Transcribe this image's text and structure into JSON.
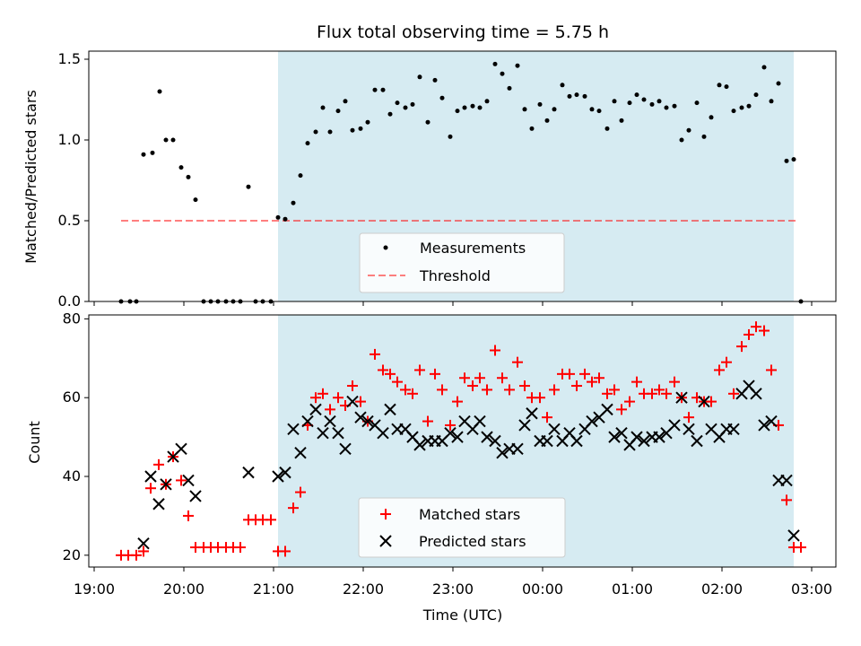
{
  "chart_data": {
    "type": "scatter",
    "title": "Flux total observing time = 5.75 h",
    "xlabel": "Time (UTC)",
    "x_ticks": [
      "19:00",
      "20:00",
      "21:00",
      "22:00",
      "23:00",
      "00:00",
      "01:00",
      "02:00",
      "03:00"
    ],
    "observing_window_hours": [
      21.05,
      26.8
    ],
    "top_panel": {
      "ylabel": "Matched/Predicted stars",
      "ylim": [
        0,
        1.55
      ],
      "y_ticks": [
        "0.0",
        "0.5",
        "1.0",
        "1.5"
      ],
      "legend": [
        "Measurements",
        "Threshold"
      ],
      "threshold": {
        "value": 0.5,
        "x_range": [
          19.3,
          26.85
        ]
      },
      "measurements": [
        [
          19.3,
          0
        ],
        [
          19.4,
          0
        ],
        [
          19.47,
          0
        ],
        [
          19.55,
          0.91
        ],
        [
          19.65,
          0.92
        ],
        [
          19.73,
          1.3
        ],
        [
          19.8,
          1.0
        ],
        [
          19.88,
          1.0
        ],
        [
          19.97,
          0.83
        ],
        [
          20.05,
          0.77
        ],
        [
          20.13,
          0.63
        ],
        [
          20.22,
          0
        ],
        [
          20.3,
          0
        ],
        [
          20.38,
          0
        ],
        [
          20.47,
          0
        ],
        [
          20.55,
          0
        ],
        [
          20.63,
          0
        ],
        [
          20.72,
          0.71
        ],
        [
          20.8,
          0
        ],
        [
          20.88,
          0
        ],
        [
          20.97,
          0
        ],
        [
          21.05,
          0.52
        ],
        [
          21.13,
          0.51
        ],
        [
          21.22,
          0.61
        ],
        [
          21.3,
          0.78
        ],
        [
          21.38,
          0.98
        ],
        [
          21.47,
          1.05
        ],
        [
          21.55,
          1.2
        ],
        [
          21.63,
          1.05
        ],
        [
          21.72,
          1.18
        ],
        [
          21.8,
          1.24
        ],
        [
          21.88,
          1.06
        ],
        [
          21.97,
          1.07
        ],
        [
          22.05,
          1.11
        ],
        [
          22.13,
          1.31
        ],
        [
          22.22,
          1.31
        ],
        [
          22.3,
          1.16
        ],
        [
          22.38,
          1.23
        ],
        [
          22.47,
          1.2
        ],
        [
          22.55,
          1.22
        ],
        [
          22.63,
          1.39
        ],
        [
          22.72,
          1.11
        ],
        [
          22.8,
          1.37
        ],
        [
          22.88,
          1.26
        ],
        [
          22.97,
          1.02
        ],
        [
          23.05,
          1.18
        ],
        [
          23.13,
          1.2
        ],
        [
          23.22,
          1.21
        ],
        [
          23.3,
          1.2
        ],
        [
          23.38,
          1.24
        ],
        [
          23.47,
          1.47
        ],
        [
          23.55,
          1.41
        ],
        [
          23.63,
          1.32
        ],
        [
          23.72,
          1.46
        ],
        [
          23.8,
          1.19
        ],
        [
          23.88,
          1.07
        ],
        [
          23.97,
          1.22
        ],
        [
          24.05,
          1.12
        ],
        [
          24.13,
          1.19
        ],
        [
          24.22,
          1.34
        ],
        [
          24.3,
          1.27
        ],
        [
          24.38,
          1.28
        ],
        [
          24.47,
          1.27
        ],
        [
          24.55,
          1.19
        ],
        [
          24.63,
          1.18
        ],
        [
          24.72,
          1.07
        ],
        [
          24.8,
          1.24
        ],
        [
          24.88,
          1.12
        ],
        [
          24.97,
          1.23
        ],
        [
          25.05,
          1.28
        ],
        [
          25.13,
          1.25
        ],
        [
          25.22,
          1.22
        ],
        [
          25.3,
          1.24
        ],
        [
          25.38,
          1.2
        ],
        [
          25.47,
          1.21
        ],
        [
          25.55,
          1.0
        ],
        [
          25.63,
          1.06
        ],
        [
          25.72,
          1.23
        ],
        [
          25.8,
          1.02
        ],
        [
          25.88,
          1.14
        ],
        [
          25.97,
          1.34
        ],
        [
          26.05,
          1.33
        ],
        [
          26.13,
          1.18
        ],
        [
          26.22,
          1.2
        ],
        [
          26.3,
          1.21
        ],
        [
          26.38,
          1.28
        ],
        [
          26.47,
          1.45
        ],
        [
          26.55,
          1.24
        ],
        [
          26.63,
          1.35
        ],
        [
          26.72,
          0.87
        ],
        [
          26.8,
          0.88
        ],
        [
          26.88,
          0
        ]
      ]
    },
    "bottom_panel": {
      "ylabel": "Count",
      "ylim": [
        17,
        81
      ],
      "y_ticks": [
        "20",
        "40",
        "60",
        "80"
      ],
      "legend": [
        "Matched stars",
        "Predicted stars"
      ],
      "series": [
        {
          "name": "Matched stars",
          "color": "#ff0000",
          "marker": "plus",
          "points": [
            [
              19.3,
              20
            ],
            [
              19.38,
              20
            ],
            [
              19.47,
              20
            ],
            [
              19.55,
              21
            ],
            [
              19.63,
              37
            ],
            [
              19.72,
              43
            ],
            [
              19.8,
              38
            ],
            [
              19.88,
              45
            ],
            [
              19.97,
              39
            ],
            [
              20.05,
              30
            ],
            [
              20.13,
              22
            ],
            [
              20.22,
              22
            ],
            [
              20.3,
              22
            ],
            [
              20.38,
              22
            ],
            [
              20.47,
              22
            ],
            [
              20.55,
              22
            ],
            [
              20.63,
              22
            ],
            [
              20.72,
              29
            ],
            [
              20.8,
              29
            ],
            [
              20.88,
              29
            ],
            [
              20.97,
              29
            ],
            [
              21.05,
              21
            ],
            [
              21.13,
              21
            ],
            [
              21.22,
              32
            ],
            [
              21.3,
              36
            ],
            [
              21.38,
              53
            ],
            [
              21.47,
              60
            ],
            [
              21.55,
              61
            ],
            [
              21.63,
              57
            ],
            [
              21.72,
              60
            ],
            [
              21.8,
              58
            ],
            [
              21.88,
              63
            ],
            [
              21.97,
              59
            ],
            [
              22.05,
              54
            ],
            [
              22.13,
              71
            ],
            [
              22.22,
              67
            ],
            [
              22.3,
              66
            ],
            [
              22.38,
              64
            ],
            [
              22.47,
              62
            ],
            [
              22.55,
              61
            ],
            [
              22.63,
              67
            ],
            [
              22.72,
              54
            ],
            [
              22.8,
              66
            ],
            [
              22.88,
              62
            ],
            [
              22.97,
              53
            ],
            [
              23.05,
              59
            ],
            [
              23.13,
              65
            ],
            [
              23.22,
              63
            ],
            [
              23.3,
              65
            ],
            [
              23.38,
              62
            ],
            [
              23.47,
              72
            ],
            [
              23.55,
              65
            ],
            [
              23.63,
              62
            ],
            [
              23.72,
              69
            ],
            [
              23.8,
              63
            ],
            [
              23.88,
              60
            ],
            [
              23.97,
              60
            ],
            [
              24.05,
              55
            ],
            [
              24.13,
              62
            ],
            [
              24.22,
              66
            ],
            [
              24.3,
              66
            ],
            [
              24.38,
              63
            ],
            [
              24.47,
              66
            ],
            [
              24.55,
              64
            ],
            [
              24.63,
              65
            ],
            [
              24.72,
              61
            ],
            [
              24.8,
              62
            ],
            [
              24.88,
              57
            ],
            [
              24.97,
              59
            ],
            [
              25.05,
              64
            ],
            [
              25.13,
              61
            ],
            [
              25.22,
              61
            ],
            [
              25.3,
              62
            ],
            [
              25.38,
              61
            ],
            [
              25.47,
              64
            ],
            [
              25.55,
              60
            ],
            [
              25.63,
              55
            ],
            [
              25.72,
              60
            ],
            [
              25.8,
              59
            ],
            [
              25.88,
              59
            ],
            [
              25.97,
              67
            ],
            [
              26.05,
              69
            ],
            [
              26.13,
              61
            ],
            [
              26.22,
              73
            ],
            [
              26.3,
              76
            ],
            [
              26.38,
              78
            ],
            [
              26.47,
              77
            ],
            [
              26.55,
              67
            ],
            [
              26.63,
              53
            ],
            [
              26.72,
              34
            ],
            [
              26.8,
              22
            ],
            [
              26.88,
              22
            ]
          ]
        },
        {
          "name": "Predicted stars",
          "color": "#000000",
          "marker": "x",
          "points": [
            [
              19.55,
              23
            ],
            [
              19.63,
              40
            ],
            [
              19.72,
              33
            ],
            [
              19.8,
              38
            ],
            [
              19.88,
              45
            ],
            [
              19.97,
              47
            ],
            [
              20.05,
              39
            ],
            [
              20.13,
              35
            ],
            [
              20.72,
              41
            ],
            [
              21.05,
              40
            ],
            [
              21.13,
              41
            ],
            [
              21.22,
              52
            ],
            [
              21.3,
              46
            ],
            [
              21.38,
              54
            ],
            [
              21.47,
              57
            ],
            [
              21.55,
              51
            ],
            [
              21.63,
              54
            ],
            [
              21.72,
              51
            ],
            [
              21.8,
              47
            ],
            [
              21.88,
              59
            ],
            [
              21.97,
              55
            ],
            [
              22.05,
              54
            ],
            [
              22.13,
              53
            ],
            [
              22.22,
              51
            ],
            [
              22.3,
              57
            ],
            [
              22.38,
              52
            ],
            [
              22.47,
              52
            ],
            [
              22.55,
              50
            ],
            [
              22.63,
              48
            ],
            [
              22.72,
              49
            ],
            [
              22.8,
              49
            ],
            [
              22.88,
              49
            ],
            [
              22.97,
              51
            ],
            [
              23.05,
              50
            ],
            [
              23.13,
              54
            ],
            [
              23.22,
              52
            ],
            [
              23.3,
              54
            ],
            [
              23.38,
              50
            ],
            [
              23.47,
              49
            ],
            [
              23.55,
              46
            ],
            [
              23.63,
              47
            ],
            [
              23.72,
              47
            ],
            [
              23.8,
              53
            ],
            [
              23.88,
              56
            ],
            [
              23.97,
              49
            ],
            [
              24.05,
              49
            ],
            [
              24.13,
              52
            ],
            [
              24.22,
              49
            ],
            [
              24.3,
              51
            ],
            [
              24.38,
              49
            ],
            [
              24.47,
              52
            ],
            [
              24.55,
              54
            ],
            [
              24.63,
              55
            ],
            [
              24.72,
              57
            ],
            [
              24.8,
              50
            ],
            [
              24.88,
              51
            ],
            [
              24.97,
              48
            ],
            [
              25.05,
              50
            ],
            [
              25.13,
              49
            ],
            [
              25.22,
              50
            ],
            [
              25.3,
              50
            ],
            [
              25.38,
              51
            ],
            [
              25.47,
              53
            ],
            [
              25.55,
              60
            ],
            [
              25.63,
              52
            ],
            [
              25.72,
              49
            ],
            [
              25.8,
              59
            ],
            [
              25.88,
              52
            ],
            [
              25.97,
              50
            ],
            [
              26.05,
              52
            ],
            [
              26.13,
              52
            ],
            [
              26.22,
              61
            ],
            [
              26.3,
              63
            ],
            [
              26.38,
              61
            ],
            [
              26.47,
              53
            ],
            [
              26.55,
              54
            ],
            [
              26.63,
              39
            ],
            [
              26.72,
              39
            ],
            [
              26.8,
              25
            ]
          ]
        }
      ]
    }
  }
}
